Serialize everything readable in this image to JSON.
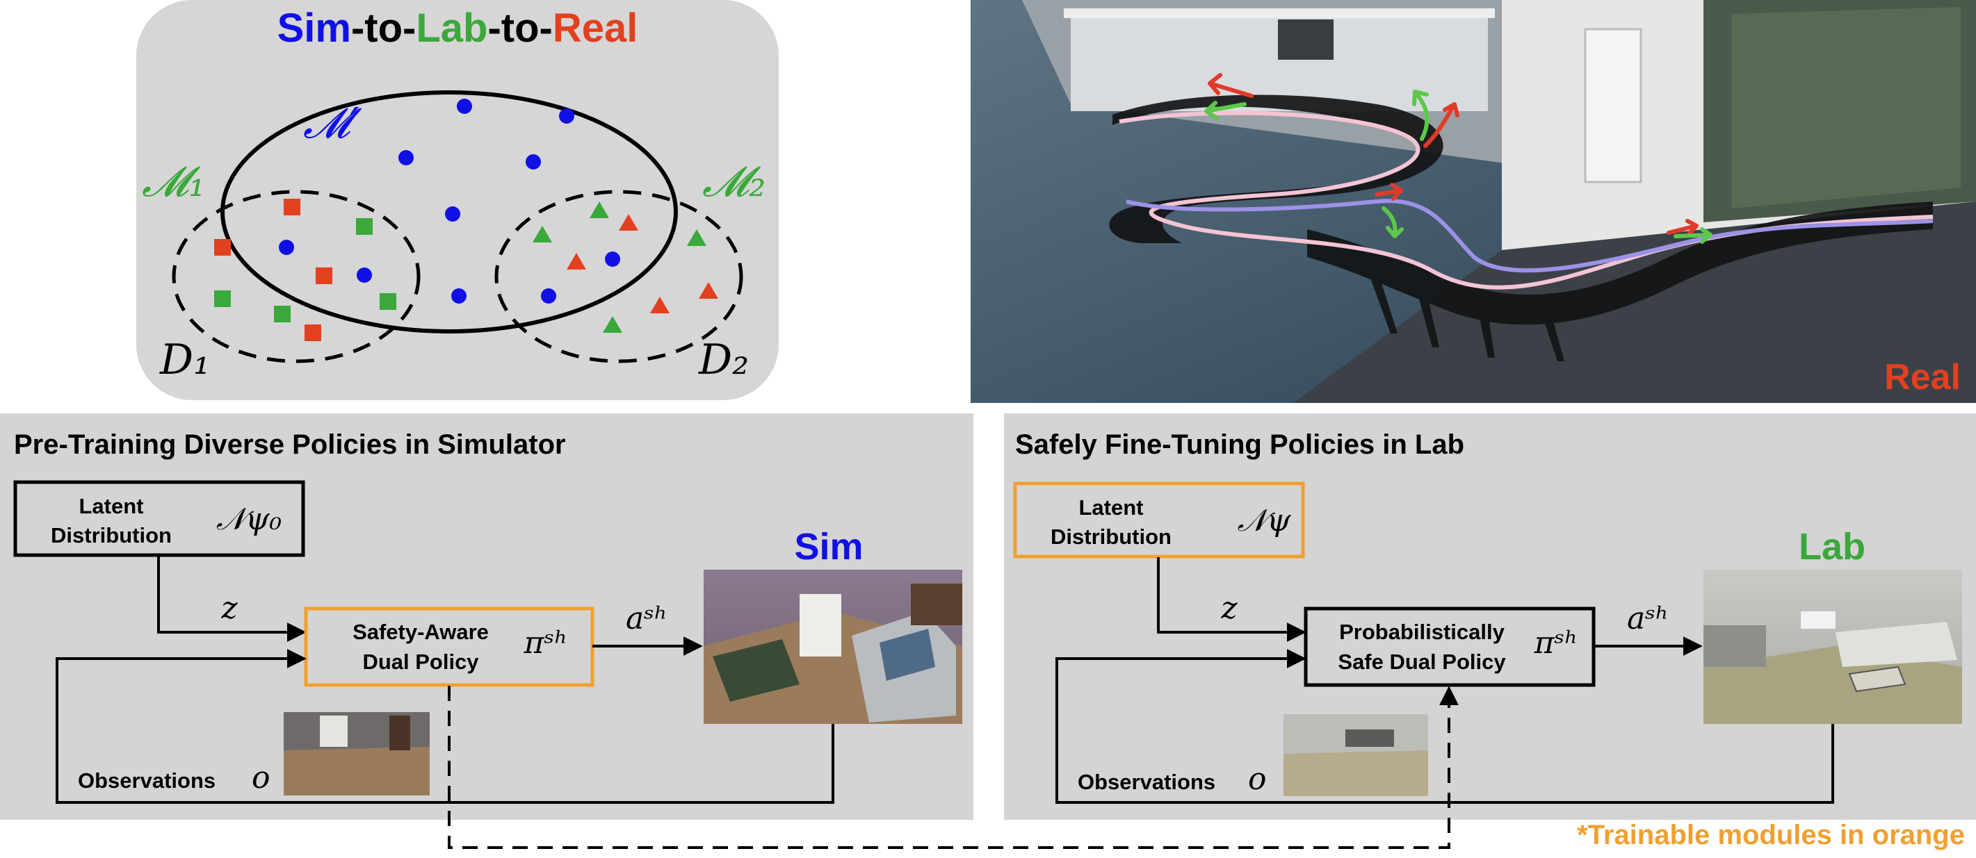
{
  "colors": {
    "blue": "#1010e6",
    "green": "#3aa83a",
    "red": "#e2401f",
    "orange": "#f0a030",
    "panel_gray": "#d6d6d6",
    "card_gray": "#d4d4d4"
  },
  "venn": {
    "title": {
      "part1": "Sim",
      "sep1": "-to-",
      "part2": "Lab",
      "sep2": "-to-",
      "part3": "Real"
    },
    "label_m_prime": "𝓜′",
    "label_m1": "𝓜₁",
    "label_m2": "𝓜₂",
    "label_d1": "D₁",
    "label_d2": "D₂"
  },
  "real_photo": {
    "label": "Real"
  },
  "sim_panel": {
    "title": "Pre-Training Diverse Policies in Simulator",
    "latent": {
      "line1": "Latent",
      "line2": "Distribution",
      "symbol": "𝒩ψ₀"
    },
    "z": "z",
    "policy": {
      "line1": "Safety-Aware",
      "line2": "Dual Policy",
      "symbol": "πˢʰ"
    },
    "action": "aˢʰ",
    "env_label": "Sim",
    "observations": "Observations",
    "obs_symbol": "o"
  },
  "lab_panel": {
    "title": "Safely Fine-Tuning Policies in Lab",
    "latent": {
      "line1": "Latent",
      "line2": "Distribution",
      "symbol": "𝒩ψ"
    },
    "z": "z",
    "policy": {
      "line1": "Probabilistically",
      "line2": "Safe Dual Policy",
      "symbol": "πˢʰ"
    },
    "action": "aˢʰ",
    "env_label": "Lab",
    "observations": "Observations",
    "obs_symbol": "o"
  },
  "footnote": "*Trainable modules in orange"
}
